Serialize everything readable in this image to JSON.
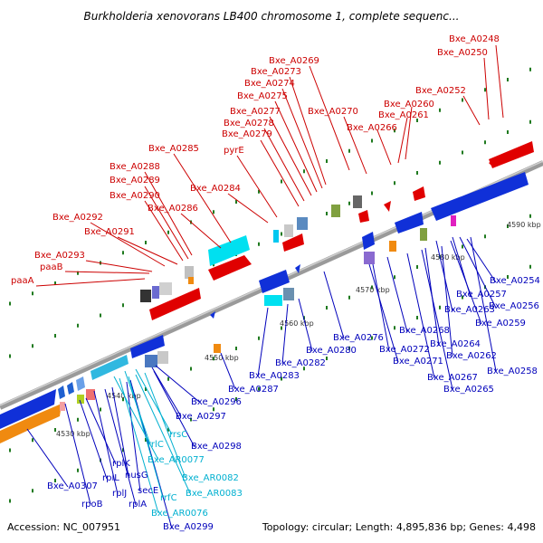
{
  "title": "Burkholderia xenovorans LB400 chromosome 1, complete sequenc...",
  "footer": {
    "accession": "Accession: NC_007951",
    "summary": "Topology: circular; Length: 4,895,836 bp; Genes: 4,498"
  },
  "colors": {
    "forward_cds": "#e00000",
    "reverse_cds": "#0000d0",
    "rna": "#00c8e0",
    "pseudo": "#e8a050",
    "backbone": "#888888",
    "tick": "#1f7a1f",
    "label_forward": "#cc0000",
    "label_reverse": "#0000bb",
    "label_rna": "#00b0d0"
  },
  "kbp_labels": [
    "4530 kbp",
    "4540 kbp",
    "4550 kbp",
    "4560 kbp",
    "4570 kbp",
    "4580 kbp",
    "4590 kbp"
  ],
  "forward_labels": [
    "Bxe_A0248",
    "Bxe_A0250",
    "Bxe_A0252",
    "Bxe_A0260",
    "Bxe_A0261",
    "Bxe_A0266",
    "Bxe_A0269",
    "Bxe_A0270",
    "Bxe_A0273",
    "Bxe_A0274",
    "Bxe_A0275",
    "Bxe_A0277",
    "Bxe_A0278",
    "Bxe_A0279",
    "pyrE",
    "Bxe_A0284",
    "Bxe_A0285",
    "Bxe_A0286",
    "Bxe_A0288",
    "Bxe_A0289",
    "Bxe_A0290",
    "Bxe_A0291",
    "Bxe_A0292",
    "Bxe_A0293",
    "paaB",
    "paaA"
  ],
  "reverse_labels": [
    "Bxe_A0254",
    "Bxe_A0257",
    "Bxe_A0256",
    "Bxe_A0263",
    "Bxe_A0259",
    "Bxe_A0268",
    "Bxe_A0264",
    "Bxe_A0262",
    "Bxe_A0258",
    "Bxe_A0276",
    "Bxe_A0272",
    "Bxe_A0271",
    "Bxe_A0267",
    "Bxe_A0265",
    "Bxe_A0280",
    "Bxe_A0282",
    "Bxe_A0283",
    "Bxe_A0287",
    "Bxe_A0296",
    "Bxe_A0297",
    "Bxe_A0298",
    "Bxe_A0307",
    "rplK",
    "rplL",
    "rpoB",
    "rplJ",
    "rplA",
    "nusG",
    "secE",
    "Bxe_A0299"
  ],
  "rna_labels": [
    "rrsC",
    "rrlC",
    "Bxe_AR0077",
    "Bxe_AR0082",
    "Bxe_AR0083",
    "rrfC",
    "Bxe_AR0076"
  ]
}
